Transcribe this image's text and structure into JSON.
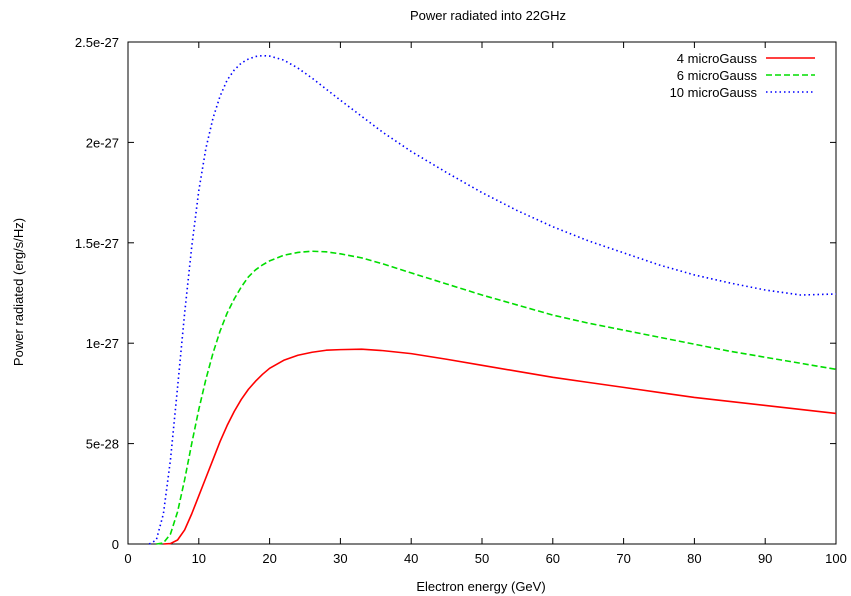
{
  "chart_data": {
    "type": "line",
    "title": "Power radiated into 22GHz",
    "xlabel": "Electron energy (GeV)",
    "ylabel": "Power radiated (erg/s/Hz)",
    "xlim": [
      0,
      100
    ],
    "ylim": [
      0,
      2.5e-27
    ],
    "x_ticks": [
      0,
      10,
      20,
      30,
      40,
      50,
      60,
      70,
      80,
      90,
      100
    ],
    "x_tick_labels": [
      "0",
      "10",
      "20",
      "30",
      "40",
      "50",
      "60",
      "70",
      "80",
      "90",
      "100"
    ],
    "y_ticks": [
      0,
      5e-28,
      1e-27,
      1.5e-27,
      2e-27,
      2.5e-27
    ],
    "y_tick_labels": [
      "0",
      "5e-28",
      "1e-27",
      "1.5e-27",
      "2e-27",
      "2.5e-27"
    ],
    "grid": false,
    "legend_position": "top-right",
    "series": [
      {
        "name": "4 microGauss",
        "color": "#ff0000",
        "dash": "solid",
        "points": [
          [
            5,
            0
          ],
          [
            6,
            2e-30
          ],
          [
            7,
            2e-29
          ],
          [
            8,
            7e-29
          ],
          [
            9,
            1.5e-28
          ],
          [
            10,
            2.4e-28
          ],
          [
            11,
            3.3e-28
          ],
          [
            12,
            4.2e-28
          ],
          [
            13,
            5.1e-28
          ],
          [
            14,
            5.9e-28
          ],
          [
            15,
            6.6e-28
          ],
          [
            16,
            7.2e-28
          ],
          [
            17,
            7.7e-28
          ],
          [
            18,
            8.1e-28
          ],
          [
            19,
            8.45e-28
          ],
          [
            20,
            8.75e-28
          ],
          [
            22,
            9.15e-28
          ],
          [
            24,
            9.4e-28
          ],
          [
            26,
            9.55e-28
          ],
          [
            28,
            9.65e-28
          ],
          [
            30,
            9.68e-28
          ],
          [
            33,
            9.7e-28
          ],
          [
            36,
            9.63e-28
          ],
          [
            40,
            9.48e-28
          ],
          [
            45,
            9.2e-28
          ],
          [
            50,
            8.9e-28
          ],
          [
            55,
            8.6e-28
          ],
          [
            60,
            8.3e-28
          ],
          [
            65,
            8.05e-28
          ],
          [
            70,
            7.8e-28
          ],
          [
            75,
            7.55e-28
          ],
          [
            80,
            7.3e-28
          ],
          [
            85,
            7.1e-28
          ],
          [
            90,
            6.9e-28
          ],
          [
            95,
            6.7e-28
          ],
          [
            100,
            6.5e-28
          ]
        ]
      },
      {
        "name": "6 microGauss",
        "color": "#00dd00",
        "dash": "dashed",
        "points": [
          [
            4,
            0
          ],
          [
            5,
            5e-30
          ],
          [
            6,
            5e-29
          ],
          [
            7,
            1.6e-28
          ],
          [
            8,
            3.2e-28
          ],
          [
            9,
            5e-28
          ],
          [
            10,
            6.7e-28
          ],
          [
            11,
            8.2e-28
          ],
          [
            12,
            9.5e-28
          ],
          [
            13,
            1.06e-27
          ],
          [
            14,
            1.15e-27
          ],
          [
            15,
            1.22e-27
          ],
          [
            16,
            1.28e-27
          ],
          [
            17,
            1.33e-27
          ],
          [
            18,
            1.365e-27
          ],
          [
            19,
            1.39e-27
          ],
          [
            20,
            1.41e-27
          ],
          [
            22,
            1.438e-27
          ],
          [
            24,
            1.452e-27
          ],
          [
            26,
            1.458e-27
          ],
          [
            28,
            1.455e-27
          ],
          [
            30,
            1.445e-27
          ],
          [
            33,
            1.425e-27
          ],
          [
            36,
            1.395e-27
          ],
          [
            40,
            1.35e-27
          ],
          [
            45,
            1.295e-27
          ],
          [
            50,
            1.24e-27
          ],
          [
            55,
            1.19e-27
          ],
          [
            60,
            1.14e-27
          ],
          [
            65,
            1.1e-27
          ],
          [
            70,
            1.065e-27
          ],
          [
            75,
            1.03e-27
          ],
          [
            80,
            9.95e-28
          ],
          [
            85,
            9.6e-28
          ],
          [
            90,
            9.3e-28
          ],
          [
            95,
            9e-28
          ],
          [
            100,
            8.7e-28
          ]
        ]
      },
      {
        "name": "10 microGauss",
        "color": "#0000ff",
        "dash": "dotted",
        "points": [
          [
            3,
            0
          ],
          [
            4,
            2e-29
          ],
          [
            5,
            1.5e-28
          ],
          [
            6,
            4.2e-28
          ],
          [
            7,
            7.8e-28
          ],
          [
            8,
            1.15e-27
          ],
          [
            9,
            1.48e-27
          ],
          [
            10,
            1.76e-27
          ],
          [
            11,
            1.97e-27
          ],
          [
            12,
            2.12e-27
          ],
          [
            13,
            2.23e-27
          ],
          [
            14,
            2.31e-27
          ],
          [
            15,
            2.36e-27
          ],
          [
            16,
            2.395e-27
          ],
          [
            17,
            2.415e-27
          ],
          [
            18,
            2.428e-27
          ],
          [
            19,
            2.432e-27
          ],
          [
            20,
            2.43e-27
          ],
          [
            22,
            2.41e-27
          ],
          [
            24,
            2.37e-27
          ],
          [
            26,
            2.32e-27
          ],
          [
            28,
            2.265e-27
          ],
          [
            30,
            2.21e-27
          ],
          [
            33,
            2.13e-27
          ],
          [
            36,
            2.05e-27
          ],
          [
            40,
            1.955e-27
          ],
          [
            45,
            1.85e-27
          ],
          [
            50,
            1.75e-27
          ],
          [
            55,
            1.66e-27
          ],
          [
            60,
            1.58e-27
          ],
          [
            65,
            1.51e-27
          ],
          [
            70,
            1.45e-27
          ],
          [
            75,
            1.39e-27
          ],
          [
            80,
            1.34e-27
          ],
          [
            85,
            1.3e-27
          ],
          [
            90,
            1.265e-27
          ],
          [
            95,
            1.24e-27
          ],
          [
            100,
            1.245e-27
          ]
        ]
      }
    ]
  }
}
